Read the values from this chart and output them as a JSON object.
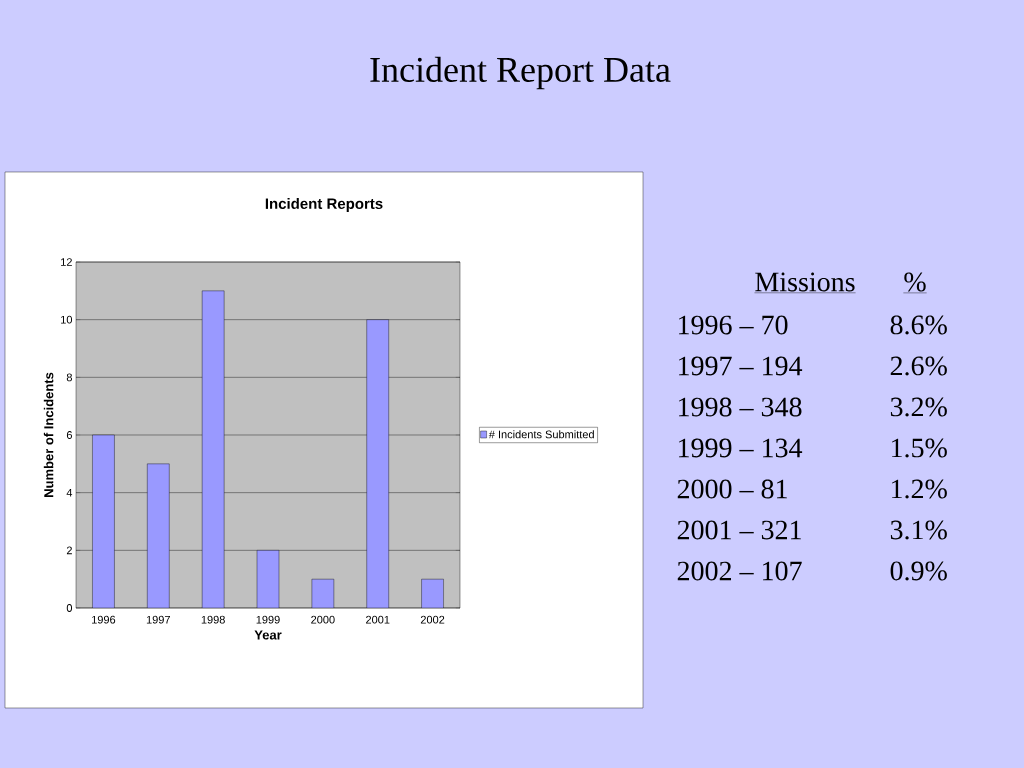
{
  "chart_data": {
    "type": "bar",
    "title": "Incident Report Data",
    "subtitle": "Incident Reports",
    "xlabel": "Year",
    "ylabel": "Number of Incidents",
    "categories": [
      "1996",
      "1997",
      "1998",
      "1999",
      "2000",
      "2001",
      "2002"
    ],
    "series": [
      {
        "name": "# Incidents Submitted",
        "color": "#9999ff",
        "values": [
          6,
          5,
          11,
          2,
          1,
          10,
          1
        ]
      }
    ],
    "ylim": [
      0,
      12
    ],
    "yticks": [
      0,
      2,
      4,
      6,
      8,
      10,
      12
    ],
    "grid": "y",
    "legend": "right",
    "annotations": [
      "Missions",
      "%",
      "1996 – 70",
      "8.6%",
      "1997 – 194",
      "2.6%",
      "1998 – 348",
      "3.2%",
      "1999 – 134",
      "1.5%",
      "2000 – 81",
      "1.2%",
      "2001 – 321",
      "3.1%",
      "2002 – 107",
      "0.9%"
    ]
  }
}
